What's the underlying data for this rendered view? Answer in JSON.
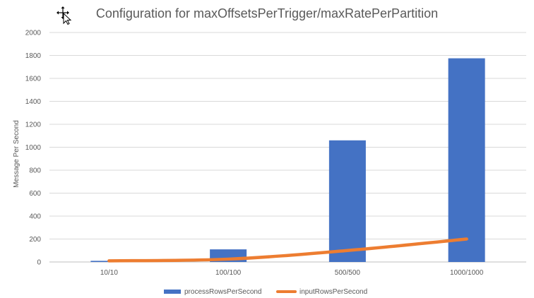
{
  "chart_data": {
    "type": "bar",
    "title": "Configuration for maxOffsetsPerTrigger/maxRatePerPartition",
    "xlabel": "",
    "ylabel": "Message Per Second",
    "categories": [
      "10/10",
      "100/100",
      "500/500",
      "1000/1000"
    ],
    "ylim": [
      0,
      2000
    ],
    "yticks": [
      0,
      200,
      400,
      600,
      800,
      1000,
      1200,
      1400,
      1600,
      1800,
      2000
    ],
    "grid": true,
    "legend_position": "bottom",
    "series": [
      {
        "name": "processRowsPerSecond",
        "type": "bar",
        "color": "#4472C4",
        "values": [
          10,
          110,
          1060,
          1775
        ]
      },
      {
        "name": "inputRowsPerSecond",
        "type": "line",
        "color": "#ED7D31",
        "values": [
          10,
          25,
          100,
          200
        ]
      }
    ]
  },
  "cursor_icon": "move-cursor-icon"
}
